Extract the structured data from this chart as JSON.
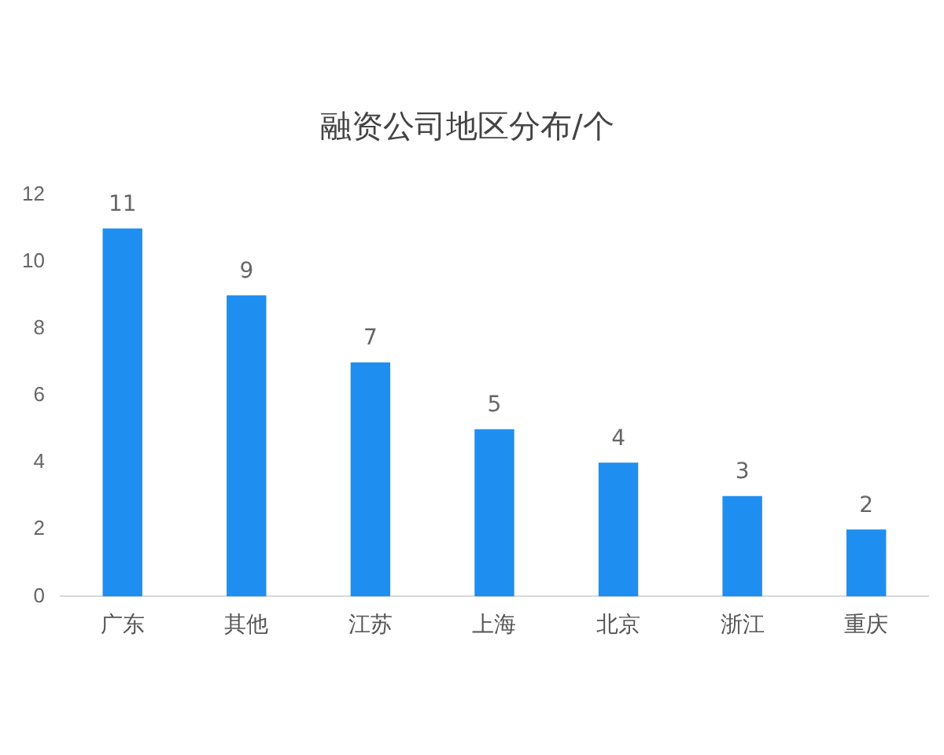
{
  "chart_data": {
    "type": "bar",
    "title": "融资公司地区分布/个",
    "categories": [
      "广东",
      "其他",
      "江苏",
      "上海",
      "北京",
      "浙江",
      "重庆"
    ],
    "values": [
      11,
      9,
      7,
      5,
      4,
      3,
      2
    ],
    "color": "#1f8ef1",
    "ylim": [
      0,
      12
    ],
    "yticks": [
      0,
      2,
      4,
      6,
      8,
      10,
      12
    ],
    "grid": false,
    "data_labels": true,
    "legend": false
  }
}
